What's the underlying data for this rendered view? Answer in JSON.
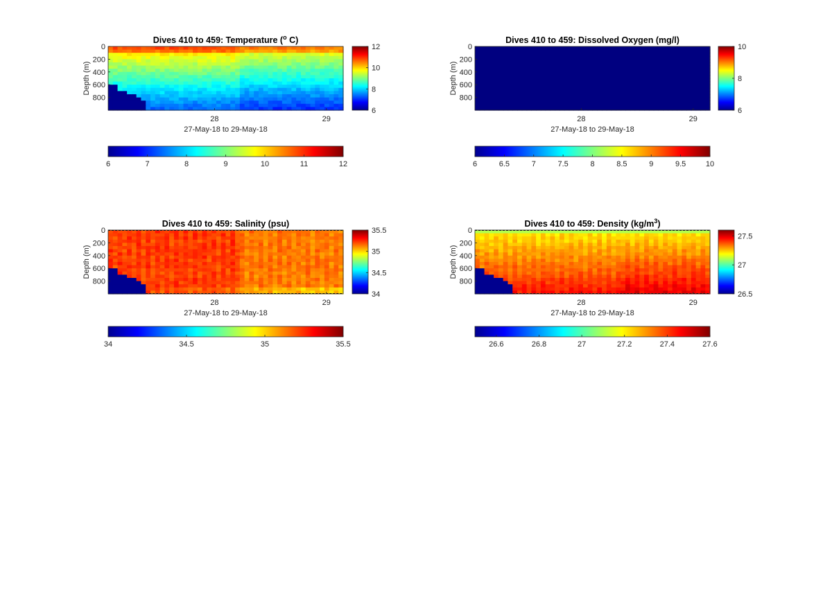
{
  "colormap": "jet",
  "mask_color": "#00008f",
  "chart_data": [
    {
      "type": "heatmap",
      "title": "Dives 410 to 459: Temperature (",
      "title_sup": "o",
      "title_tail": " C)",
      "ylabel": "Depth (m)",
      "xlabel": "27-May-18 to 29-May-18",
      "x_ticks": [
        {
          "value": 28,
          "label": "28"
        },
        {
          "value": 29,
          "label": "29"
        }
      ],
      "xlim": [
        27.05,
        29.15
      ],
      "y_ticks": [
        "0",
        "200",
        "400",
        "600",
        "800"
      ],
      "ylim": [
        0,
        1000
      ],
      "y_reversed": true,
      "clim": [
        6,
        12
      ],
      "side_colorbar_ticks": [
        "12",
        "10",
        "8",
        "6"
      ],
      "bottom_colorbar_ticks": [
        "6",
        "7",
        "8",
        "9",
        "10",
        "11",
        "12"
      ],
      "field": "temperature",
      "bottom_mask": true
    },
    {
      "type": "heatmap",
      "title": "Dives 410 to 459: Dissolved Oxygen (mg/l)",
      "ylabel": "Depth (m)",
      "xlabel": "27-May-18 to 29-May-18",
      "x_ticks": [
        {
          "value": 28,
          "label": "28"
        },
        {
          "value": 29,
          "label": "29"
        }
      ],
      "xlim": [
        27.05,
        29.15
      ],
      "y_ticks": [
        "0",
        "200",
        "400",
        "600",
        "800"
      ],
      "ylim": [
        0,
        1000
      ],
      "y_reversed": true,
      "clim": [
        6,
        10
      ],
      "side_colorbar_ticks": [
        "10",
        "8",
        "6"
      ],
      "bottom_colorbar_ticks": [
        "6",
        "6.5",
        "7",
        "7.5",
        "8",
        "8.5",
        "9",
        "9.5",
        "10"
      ],
      "field": "oxygen",
      "bottom_mask": false
    },
    {
      "type": "heatmap",
      "title": "Dives 410 to 459: Salinity (psu)",
      "ylabel": "Depth (m)",
      "xlabel": "27-May-18 to 29-May-18",
      "x_ticks": [
        {
          "value": 28,
          "label": "28"
        },
        {
          "value": 29,
          "label": "29"
        }
      ],
      "xlim": [
        27.05,
        29.15
      ],
      "y_ticks": [
        "0",
        "200",
        "400",
        "600",
        "800"
      ],
      "ylim": [
        0,
        1000
      ],
      "y_reversed": true,
      "clim": [
        34,
        35.5
      ],
      "side_colorbar_ticks": [
        "35.5",
        "35",
        "34.5",
        "34"
      ],
      "bottom_colorbar_ticks": [
        "34",
        "34.5",
        "35",
        "35.5"
      ],
      "field": "salinity",
      "bottom_mask": true
    },
    {
      "type": "heatmap",
      "title": "Dives 410 to 459: Density (kg/m",
      "title_sup": "3",
      "title_tail": ")",
      "ylabel": "Depth (m)",
      "xlabel": "27-May-18 to 29-May-18",
      "x_ticks": [
        {
          "value": 28,
          "label": "28"
        },
        {
          "value": 29,
          "label": "29"
        }
      ],
      "xlim": [
        27.05,
        29.15
      ],
      "y_ticks": [
        "0",
        "200",
        "400",
        "600",
        "800"
      ],
      "ylim": [
        0,
        1000
      ],
      "y_reversed": true,
      "clim": [
        26.5,
        27.6
      ],
      "side_colorbar_ticks": [
        "27.5",
        "27",
        "26.5"
      ],
      "bottom_colorbar_ticks": [
        "26.6",
        "26.8",
        "27",
        "27.2",
        "27.4",
        "27.6"
      ],
      "field": "density",
      "bottom_mask": true
    }
  ]
}
